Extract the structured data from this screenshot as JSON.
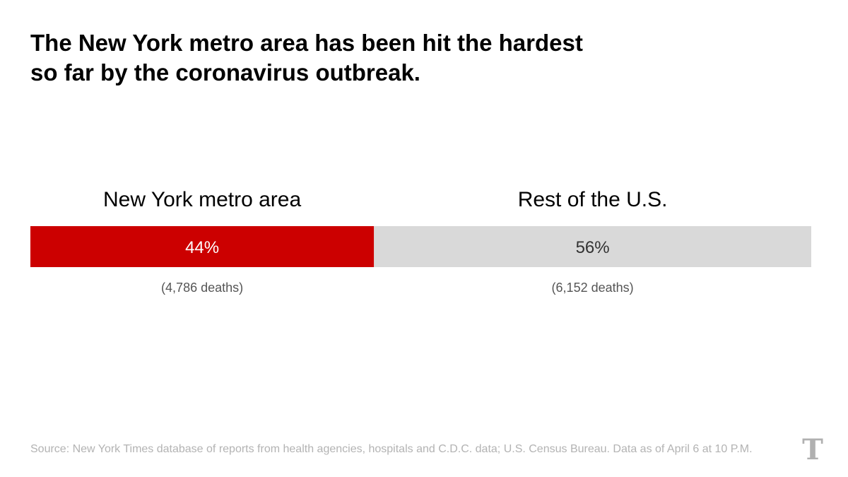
{
  "title_lines": [
    "The New York metro area has been hit the hardest",
    "so far by the coronavirus outbreak."
  ],
  "chart_data": {
    "type": "bar",
    "orientation": "horizontal-stacked",
    "title": "The New York metro area has been hit the hardest so far by the coronavirus outbreak.",
    "categories": [
      "New York metro area",
      "Rest of the U.S."
    ],
    "values": [
      44,
      56
    ],
    "value_labels": [
      "44%",
      "56%"
    ],
    "sub_labels": [
      "(4,786 deaths)",
      "(6,152 deaths)"
    ],
    "deaths": [
      4786,
      6152
    ],
    "unit": "%",
    "colors": [
      "#cc0000",
      "#d9d9d9"
    ],
    "label_colors": [
      "#ffffff",
      "#333333"
    ]
  },
  "source": "Source: New York Times database of reports from health agencies, hospitals and C.D.C. data; U.S. Census Bureau. Data as of April 6 at 10 P.M.",
  "logo": {
    "icon": "nyt-t-logo",
    "glyph": "T"
  }
}
